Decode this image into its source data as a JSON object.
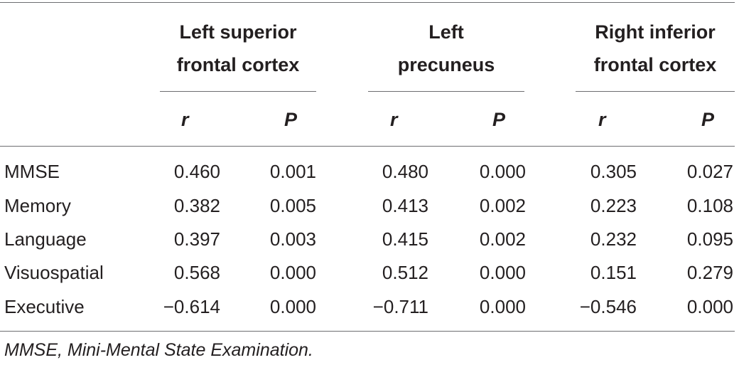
{
  "table": {
    "groups": [
      {
        "line1": "Left superior",
        "line2": "frontal cortex"
      },
      {
        "line1": "Left",
        "line2": "precuneus"
      },
      {
        "line1": "Right inferior",
        "line2": "frontal cortex"
      }
    ],
    "sub_headers": [
      "r",
      "P",
      "r",
      "P",
      "r",
      "P"
    ],
    "rows": [
      {
        "label": "MMSE",
        "values": [
          "0.460",
          "0.001",
          "0.480",
          "0.000",
          "0.305",
          "0.027"
        ]
      },
      {
        "label": "Memory",
        "values": [
          "0.382",
          "0.005",
          "0.413",
          "0.002",
          "0.223",
          "0.108"
        ]
      },
      {
        "label": "Language",
        "values": [
          "0.397",
          "0.003",
          "0.415",
          "0.002",
          "0.232",
          "0.095"
        ]
      },
      {
        "label": "Visuospatial",
        "values": [
          "0.568",
          "0.000",
          "0.512",
          "0.000",
          "0.151",
          "0.279"
        ]
      },
      {
        "label": "Executive",
        "values": [
          "−0.614",
          "0.000",
          "−0.711",
          "0.000",
          "−0.546",
          "0.000"
        ]
      }
    ],
    "footnote": "MMSE, Mini-Mental State Examination."
  }
}
